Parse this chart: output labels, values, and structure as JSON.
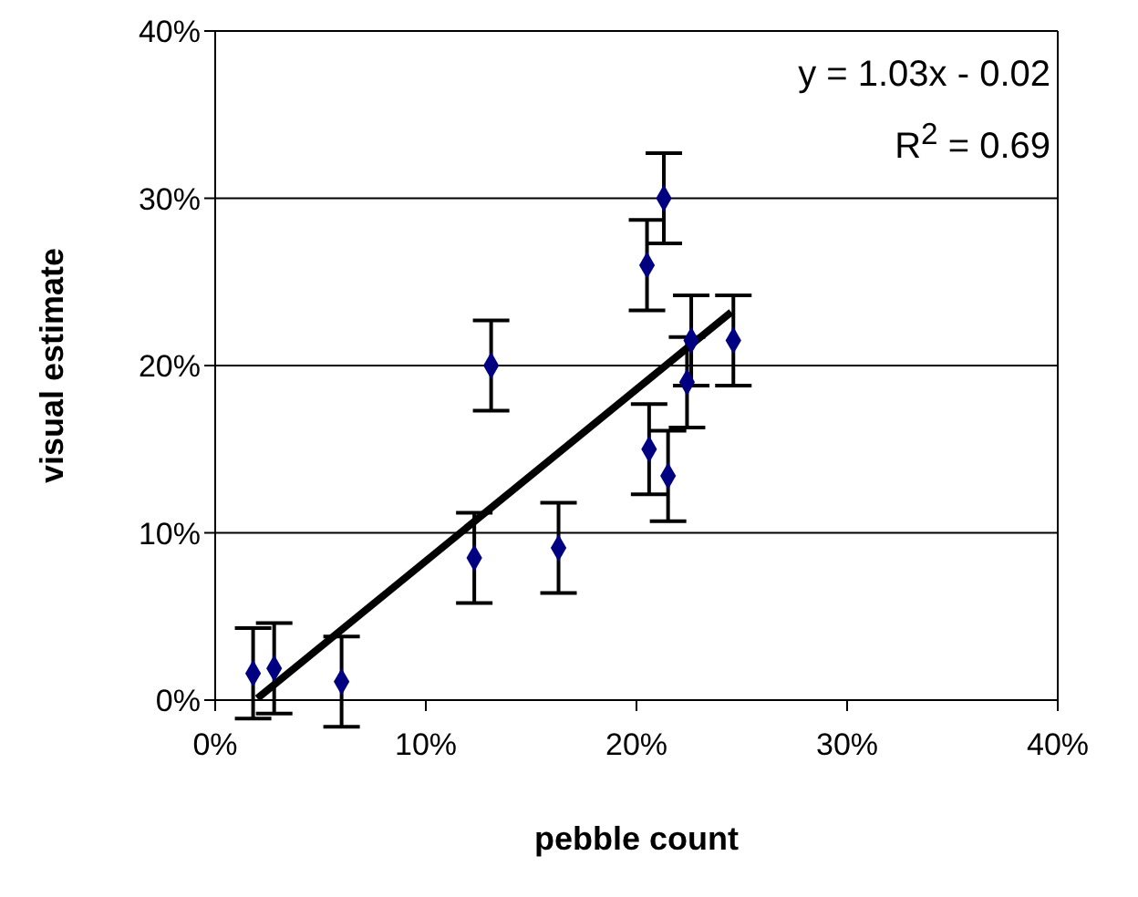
{
  "chart_data": {
    "type": "scatter",
    "xlabel": "pebble count",
    "ylabel": "visual estimate",
    "xlim": [
      0,
      40
    ],
    "ylim": [
      0,
      40
    ],
    "xticks": [
      {
        "value": 0,
        "label": "0%"
      },
      {
        "value": 10,
        "label": "10%"
      },
      {
        "value": 20,
        "label": "20%"
      },
      {
        "value": 30,
        "label": "30%"
      },
      {
        "value": 40,
        "label": "40%"
      }
    ],
    "yticks": [
      {
        "value": 0,
        "label": "0%"
      },
      {
        "value": 10,
        "label": "10%"
      },
      {
        "value": 20,
        "label": "20%"
      },
      {
        "value": 30,
        "label": "30%"
      },
      {
        "value": 40,
        "label": "40%"
      }
    ],
    "grid": "y",
    "marker": "diamond",
    "annotations": [
      "y = 1.03x - 0.02",
      "R$^{2}$ = 0.69"
    ],
    "series": [
      {
        "color": "#000080",
        "x": [
          1.8,
          2.8,
          6,
          12.3,
          16.3,
          13.1,
          20.6,
          20.5,
          21.3,
          21.5,
          22.4,
          22.6,
          24.6
        ],
        "values": [
          1.6,
          1.9,
          1.1,
          8.5,
          9.1,
          20,
          15,
          26,
          30,
          13.4,
          19,
          21.5,
          21.5
        ],
        "errors": [
          2.7,
          2.7,
          2.7,
          2.7,
          2.7,
          2.7,
          2.7,
          2.7,
          2.7,
          2.7,
          2.7,
          2.7,
          2.7
        ]
      },
      {
        "type": "line",
        "color": "#000000",
        "marker": "none",
        "x": [
          2,
          24.5
        ],
        "values": [
          0.1,
          23.2
        ]
      }
    ]
  }
}
